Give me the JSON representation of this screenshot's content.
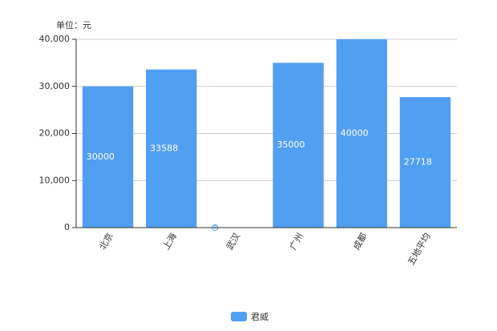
{
  "chart_data": {
    "type": "bar",
    "y_axis_label": "单位：元",
    "categories": [
      "北京",
      "上海",
      "武汉",
      "广州",
      "成都",
      "五地平均"
    ],
    "series": [
      {
        "name": "君威",
        "color": "#519ff2",
        "values": [
          30000,
          33588,
          0,
          35000,
          40000,
          27718
        ]
      }
    ],
    "ylim": [
      0,
      40000
    ],
    "yticks": [
      0,
      {
        "value": 10000,
        "label": "10,000"
      },
      {
        "value": 20000,
        "label": "20,000"
      },
      {
        "value": 30000,
        "label": "30,000"
      },
      {
        "value": 40000,
        "label": "40,000"
      }
    ],
    "grid": true,
    "legend": "bottom"
  }
}
